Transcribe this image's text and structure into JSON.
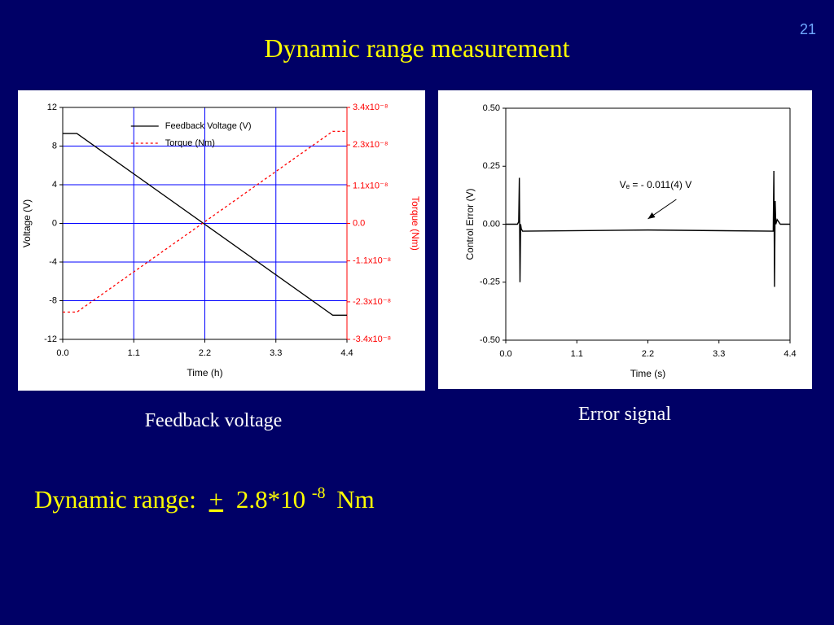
{
  "slide_number": "21",
  "title": "Dynamic range measurement",
  "chart_data": [
    {
      "type": "line",
      "x": [
        0,
        0.22,
        4.18,
        4.4
      ],
      "series": [
        {
          "name": "Feedback Voltage (V)",
          "color": "#000000",
          "linestyle": "solid",
          "values": [
            9.3,
            9.3,
            -9.5,
            -9.5
          ]
        },
        {
          "name": "Torque (Nm)",
          "color": "#ff0000",
          "linestyle": "dashed",
          "axis": "y2",
          "values": [
            -2.6e-08,
            -2.6e-08,
            2.7e-08,
            2.7e-08
          ]
        }
      ],
      "x_label": "Time (h)",
      "y_label": "Voltage (V)",
      "y2_label": "Torque (Nm)",
      "xlim": [
        0,
        4.4
      ],
      "xticks": [
        {
          "value": 0,
          "label": "0.0"
        },
        1.1,
        2.2,
        3.3,
        4.4
      ],
      "ylim": [
        -12,
        12
      ],
      "yticks": [
        -12,
        -8,
        -4,
        0,
        4,
        8,
        12
      ],
      "y2lim": [
        -3.4e-08,
        3.4e-08
      ],
      "y2ticks": [
        {
          "value": -3.4e-08,
          "label": "-3.4x10⁻⁸"
        },
        {
          "value": -2.3e-08,
          "label": "-2.3x10⁻⁸"
        },
        {
          "value": -1.1e-08,
          "label": "-1.1x10⁻⁸"
        },
        {
          "value": 0,
          "label": "0.0"
        },
        {
          "value": 1.1e-08,
          "label": "1.1x10⁻⁸"
        },
        {
          "value": 2.3e-08,
          "label": "2.3x10⁻⁸"
        },
        {
          "value": 3.4e-08,
          "label": "3.4x10⁻⁸"
        }
      ],
      "grid": true,
      "grid_color": "#0000ff",
      "legend": "upper center",
      "caption": "Feedback voltage"
    },
    {
      "type": "line",
      "x": [
        0,
        0.18,
        0.2,
        0.21,
        0.22,
        0.23,
        0.24,
        0.26,
        2.2,
        4.14,
        4.15,
        4.16,
        4.17,
        4.18,
        4.2,
        4.25,
        4.4
      ],
      "values": [
        0,
        0,
        0.01,
        0.2,
        -0.25,
        0.0,
        -0.02,
        -0.03,
        -0.025,
        -0.03,
        0.23,
        -0.27,
        0.1,
        0.0,
        0.02,
        0.0,
        0.0
      ],
      "color": "#000000",
      "x_label": "Time (s)",
      "y_label": "Control Error (V)",
      "xlim": [
        0,
        4.4
      ],
      "xticks": [
        {
          "value": 0,
          "label": "0.0"
        },
        1.1,
        2.2,
        3.3,
        4.4
      ],
      "ylim": [
        -0.5,
        0.5
      ],
      "yticks": [
        {
          "value": -0.5,
          "label": "-0.50"
        },
        {
          "value": -0.25,
          "label": "-0.25"
        },
        {
          "value": 0,
          "label": "0.00"
        },
        {
          "value": 0.25,
          "label": "0.25"
        },
        {
          "value": 0.5,
          "label": "0.50"
        }
      ],
      "grid": false,
      "annotation": "Vₑ = - 0.011(4) V",
      "caption": "Error signal"
    }
  ],
  "footer": {
    "label": "Dynamic range:",
    "sign": "+",
    "mantissa": "2.8*10",
    "exponent": "-8",
    "unit": "Nm"
  }
}
